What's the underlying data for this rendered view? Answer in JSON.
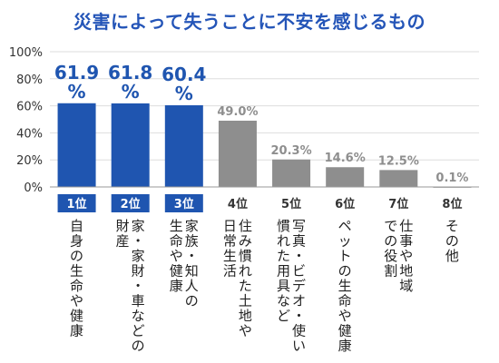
{
  "chart_data": {
    "type": "bar",
    "title": "災害によって失うことに不安を感じるもの",
    "ylim": [
      0,
      100
    ],
    "yticks": [
      "0%",
      "20%",
      "40%",
      "60%",
      "80%",
      "100%"
    ],
    "grid": true,
    "ranks": [
      "1位",
      "2位",
      "3位",
      "4位",
      "5位",
      "6位",
      "7位",
      "8位"
    ],
    "categories": [
      [
        "自身の生命や健康"
      ],
      [
        "家・家財・車などの",
        "財産"
      ],
      [
        "家族・知人の",
        "生命や健康"
      ],
      [
        "住み慣れた土地や",
        "日常生活"
      ],
      [
        "写真・ビデオ・使い",
        "慣れた用具など"
      ],
      [
        "ペットの生命や健康"
      ],
      [
        "仕事や地域",
        "での役割"
      ],
      [
        "その他"
      ]
    ],
    "values": [
      61.9,
      61.8,
      60.4,
      49.0,
      20.3,
      14.6,
      12.5,
      0.1
    ],
    "value_labels": [
      "61.9 %",
      "61.8 %",
      "60.4 %",
      "49.0%",
      "20.3%",
      "14.6%",
      "12.5%",
      "0.1%"
    ],
    "highlight_count": 3,
    "colors": {
      "highlight": "#1f55b0",
      "other": "#8e8e8e",
      "grid": "#dddddd",
      "axis_text": "#333333",
      "title": "#2455b8"
    }
  }
}
